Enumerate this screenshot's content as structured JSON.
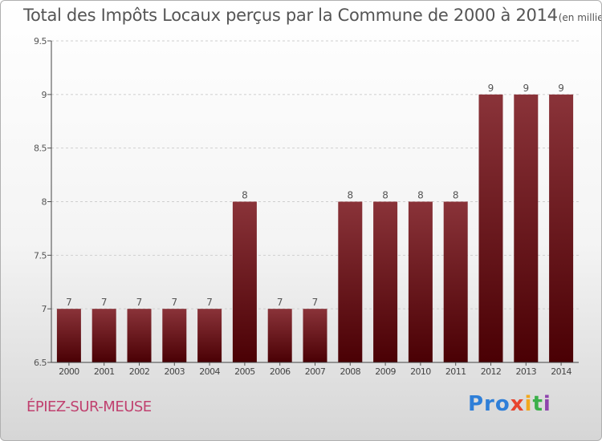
{
  "chart_data": {
    "type": "bar",
    "title": "Total des Impôts Locaux perçus par la Commune de 2000 à 2014",
    "subtitle": "(en milliers d'€)",
    "categories": [
      "2000",
      "2001",
      "2002",
      "2003",
      "2004",
      "2005",
      "2006",
      "2007",
      "2008",
      "2009",
      "2010",
      "2011",
      "2012",
      "2013",
      "2014"
    ],
    "values": [
      7,
      7,
      7,
      7,
      7,
      8,
      7,
      7,
      8,
      8,
      8,
      8,
      9,
      9,
      9
    ],
    "data_labels": [
      "7",
      "7",
      "7",
      "7",
      "7",
      "8",
      "7",
      "7",
      "8",
      "8",
      "8",
      "8",
      "9",
      "9",
      "9"
    ],
    "yticks": [
      "6.5",
      "7",
      "7.5",
      "8",
      "8.5",
      "9",
      "9.5"
    ],
    "ylim": [
      6.5,
      9.5
    ],
    "xlabel": "",
    "ylabel": "",
    "grid": true,
    "colors": {
      "bar_top": "#8a3339",
      "bar_bottom": "#4a0004",
      "grid": "#cfcfcf"
    }
  },
  "footer": {
    "city": "ÉPIEZ-SUR-MEUSE",
    "logo_parts": [
      "Pro",
      "x",
      "i",
      "t",
      "i"
    ]
  }
}
